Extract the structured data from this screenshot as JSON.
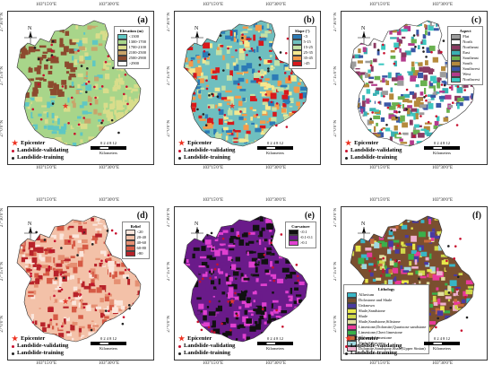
{
  "coords": {
    "top_x": [
      "103°15'0\"E",
      "103°30'0\"E"
    ],
    "bottom_x": [
      "103°15'0\"E",
      "103°30'0\"E"
    ],
    "y": [
      "27°30'0\"N",
      "27°15'0\"N",
      "27°0'0\"N"
    ]
  },
  "north_label": "N",
  "scale": {
    "ticks": "0 2 4   8   12",
    "unit": "Kilometers"
  },
  "points_legend": {
    "epicenter": "Epicenter",
    "validating": "Landslide-validating",
    "training": "Landslide-training"
  },
  "colors": {
    "epicenter": "#e53a2a",
    "validating": "#c8102e",
    "training": "#222222"
  },
  "panels": [
    {
      "id": "a",
      "label": "(a)",
      "legend_title": "Elevation (m)",
      "classes": [
        {
          "label": "<1300",
          "color": "#5fc7c3"
        },
        {
          "label": "1300-1700",
          "color": "#a8d58a"
        },
        {
          "label": "1700-2100",
          "color": "#d9dd8b"
        },
        {
          "label": "2100-2500",
          "color": "#c9a46a"
        },
        {
          "label": "2500-2900",
          "color": "#8c4a2e"
        },
        {
          "label": ">2900",
          "color": "#ffffff"
        }
      ]
    },
    {
      "id": "b",
      "label": "(b)",
      "legend_title": "Slope (°)",
      "classes": [
        {
          "label": "<5",
          "color": "#2c7bb6"
        },
        {
          "label": "5-15",
          "color": "#6fbfbf"
        },
        {
          "label": "15-25",
          "color": "#c5e1a5"
        },
        {
          "label": "25-35",
          "color": "#f5e88f"
        },
        {
          "label": "35-45",
          "color": "#f39a4a"
        },
        {
          "label": ">45",
          "color": "#d7191c"
        }
      ]
    },
    {
      "id": "c",
      "label": "(c)",
      "legend_title": "Aspect",
      "classes": [
        {
          "label": "Flat",
          "color": "#9d9d9d"
        },
        {
          "label": "North",
          "color": "#ffffff"
        },
        {
          "label": "Northeast",
          "color": "#8b3a62"
        },
        {
          "label": "East",
          "color": "#3ab0b3"
        },
        {
          "label": "Southeast",
          "color": "#6ab150"
        },
        {
          "label": "South",
          "color": "#b58a3c"
        },
        {
          "label": "Southwest",
          "color": "#3a57a6"
        },
        {
          "label": "West",
          "color": "#b33a8c"
        },
        {
          "label": "Northwest",
          "color": "#3cc7c0"
        }
      ]
    },
    {
      "id": "d",
      "label": "(d)",
      "legend_title": "Relief",
      "classes": [
        {
          "label": "<20",
          "color": "#fbe6dc"
        },
        {
          "label": "20-40",
          "color": "#f3c1a8"
        },
        {
          "label": "40-60",
          "color": "#e58f72"
        },
        {
          "label": "60-80",
          "color": "#d65a45"
        },
        {
          "label": ">80",
          "color": "#b8232a"
        }
      ]
    },
    {
      "id": "e",
      "label": "(e)",
      "legend_title": "Curvature",
      "classes": [
        {
          "label": "<0.1",
          "color": "#111111"
        },
        {
          "label": "-0.1-0.1",
          "color": "#6a1b8a"
        },
        {
          "label": ">0.1",
          "color": "#e040d0"
        }
      ]
    },
    {
      "id": "f",
      "label": "(f)",
      "legend_title": "Lithology",
      "classes": [
        {
          "label": "Alluvium",
          "color": "#38b6c6"
        },
        {
          "label": "Dolostone and Shale",
          "color": "#7a4f2f"
        },
        {
          "label": "Unknown",
          "color": "#4a3aa0"
        },
        {
          "label": "Shale,Sandstone",
          "color": "#e8e84a"
        },
        {
          "label": "Shale",
          "color": "#cfd84a"
        },
        {
          "label": "Shale,Sandstone,Siltstone",
          "color": "#e0e0a0"
        },
        {
          "label": "Limestone,Dolomite,Quartzose sandstone",
          "color": "#e83a9a"
        },
        {
          "label": "Limestone,Chert limestone",
          "color": "#3ab04a"
        },
        {
          "label": "Dolomite,Limestone",
          "color": "#c86a3a"
        },
        {
          "label": "Shale,Siltstone",
          "color": "#a0d8e0"
        },
        {
          "label": "Dolomite,Sandstone,Shale(Upper Sinian)",
          "color": "#f0b0d0"
        }
      ]
    }
  ]
}
